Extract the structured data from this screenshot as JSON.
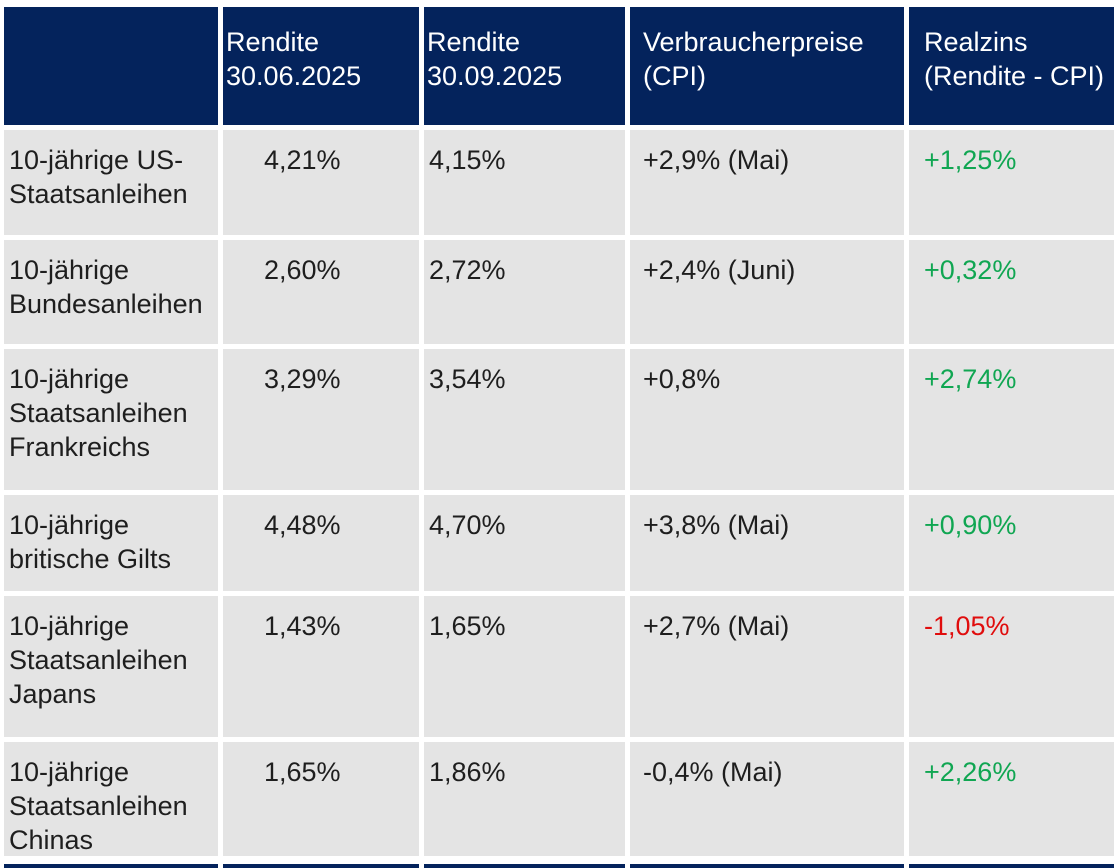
{
  "table": {
    "headers": {
      "col1": "",
      "col2": "Rendite 30.06.2025",
      "col3": "Rendite 30.09.2025",
      "col4": "Verbraucherpreise (CPI)",
      "col5": "Realzins (Rendite - CPI)"
    },
    "rows": [
      {
        "label": "10-jährige US-Staatsanleihen",
        "rendite_30_06": "4,21%",
        "rendite_30_09": "4,15%",
        "cpi": "+2,9% (Mai)",
        "realzins": "+1,25%",
        "trend": "positive"
      },
      {
        "label": "10-jährige Bundesanleihen",
        "rendite_30_06": "2,60%",
        "rendite_30_09": "2,72%",
        "cpi": "+2,4% (Juni)",
        "realzins": "+0,32%",
        "trend": "positive"
      },
      {
        "label": "10-jährige Staatsanleihen Frankreichs",
        "rendite_30_06": "3,29%",
        "rendite_30_09": "3,54%",
        "cpi": "+0,8%",
        "realzins": "+2,74%",
        "trend": "positive"
      },
      {
        "label": "10-jährige britische Gilts",
        "rendite_30_06": "4,48%",
        "rendite_30_09": "4,70%",
        "cpi": "+3,8% (Mai)",
        "realzins": "+0,90%",
        "trend": "positive"
      },
      {
        "label": "10-jährige Staatsanleihen Japans",
        "rendite_30_06": "1,43%",
        "rendite_30_09": "1,65%",
        "cpi": "+2,7% (Mai)",
        "realzins": "-1,05%",
        "trend": "negative"
      },
      {
        "label": "10-jährige Staatsanleihen Chinas",
        "rendite_30_06": "1,65%",
        "rendite_30_09": "1,86%",
        "cpi": "-0,4% (Mai)",
        "realzins": "+2,26%",
        "trend": "positive"
      }
    ]
  },
  "colors": {
    "header_bg": "#04235c",
    "row_bg": "#e4e4e4",
    "positive": "#10a652",
    "negative": "#e00d0d",
    "text": "#1e1e1e",
    "header_text": "#ffffff"
  },
  "chart_data": {
    "type": "table",
    "columns": [
      "",
      "Rendite 30.06.2025",
      "Rendite 30.09.2025",
      "Verbraucherpreise (CPI)",
      "Realzins (Rendite - CPI)"
    ],
    "rows": [
      [
        "10-jährige US-Staatsanleihen",
        "4,21%",
        "4,15%",
        "+2,9% (Mai)",
        "+1,25%"
      ],
      [
        "10-jährige Bundesanleihen",
        "2,60%",
        "2,72%",
        "+2,4% (Juni)",
        "+0,32%"
      ],
      [
        "10-jährige Staatsanleihen Frankreichs",
        "3,29%",
        "3,54%",
        "+0,8%",
        "+2,74%"
      ],
      [
        "10-jährige britische Gilts",
        "4,48%",
        "4,70%",
        "+3,8% (Mai)",
        "+0,90%"
      ],
      [
        "10-jährige Staatsanleihen Japans",
        "1,43%",
        "1,65%",
        "+2,7% (Mai)",
        "-1,05%"
      ],
      [
        "10-jährige Staatsanleihen Chinas",
        "1,65%",
        "1,86%",
        "-0,4% (Mai)",
        "+2,26%"
      ]
    ]
  }
}
